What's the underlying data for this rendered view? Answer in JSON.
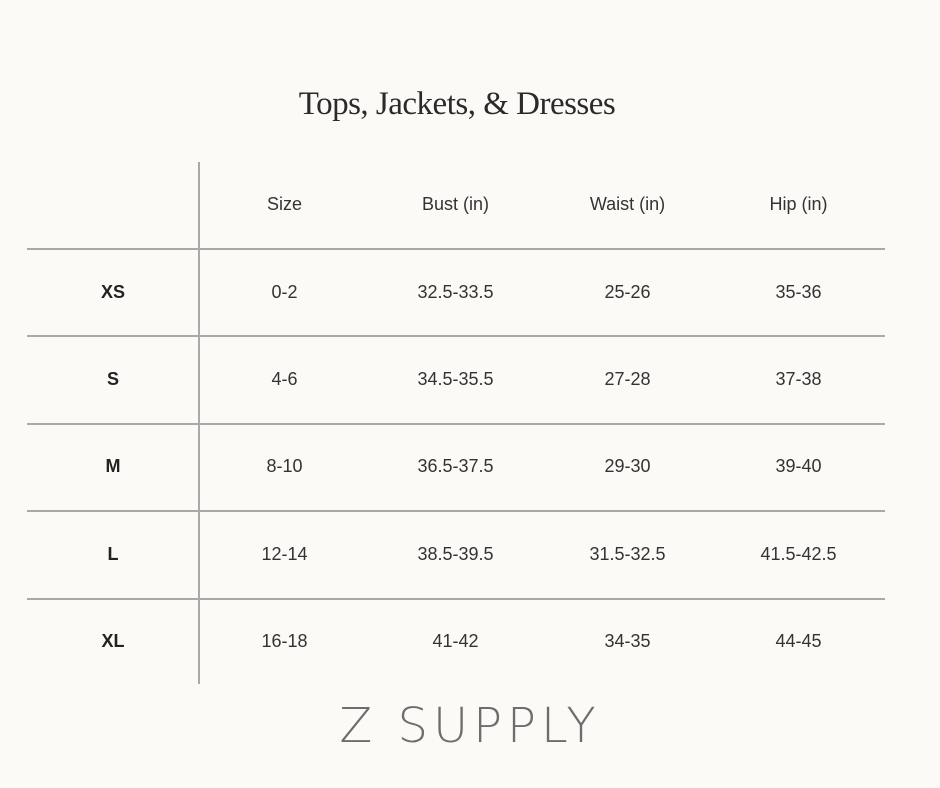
{
  "title": "Tops, Jackets, & Dresses",
  "table": {
    "headers": [
      "",
      "Size",
      "Bust (in)",
      "Waist (in)",
      "Hip (in)"
    ],
    "rows": [
      {
        "label": "XS",
        "size": "0-2",
        "bust": "32.5-33.5",
        "waist": "25-26",
        "hip": "35-36"
      },
      {
        "label": "S",
        "size": "4-6",
        "bust": "34.5-35.5",
        "waist": "27-28",
        "hip": "37-38"
      },
      {
        "label": "M",
        "size": "8-10",
        "bust": "36.5-37.5",
        "waist": "29-30",
        "hip": "39-40"
      },
      {
        "label": "L",
        "size": "12-14",
        "bust": "38.5-39.5",
        "waist": "31.5-32.5",
        "hip": "41.5-42.5"
      },
      {
        "label": "XL",
        "size": "16-18",
        "bust": "41-42",
        "waist": "34-35",
        "hip": "44-45"
      }
    ]
  },
  "brand": "Z SUPPLY",
  "colors": {
    "background": "#fcfaf7",
    "rule": "#a9a9a9",
    "text": "#333333"
  }
}
